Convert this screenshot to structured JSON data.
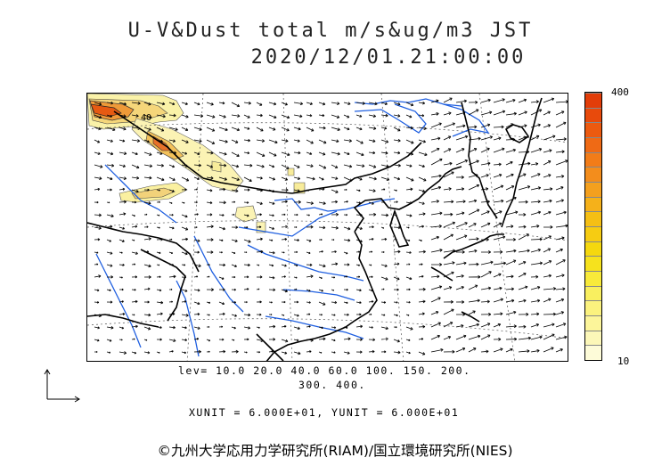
{
  "title": {
    "line1": "U-V&Dust total m/s&ug/m3 JST",
    "line2": "2020/12/01.21:00:00"
  },
  "map": {
    "coastline_color": "#000000",
    "river_color": "#1f5fe0",
    "grid_color": "#555555",
    "contour_label": "40"
  },
  "colorbar": {
    "max_label": "400",
    "min_label": "10",
    "colors": [
      "#fdfbd8",
      "#fcf7b8",
      "#fcf59a",
      "#fbf27e",
      "#f9ef5f",
      "#f8ea3a",
      "#f6e21d",
      "#f5d80e",
      "#f6cc12",
      "#f5bf14",
      "#f5b11a",
      "#f4a01e",
      "#f38d1c",
      "#f27c18",
      "#ef6a15",
      "#ec5a10",
      "#e84a0c",
      "#e23d09"
    ]
  },
  "levels": {
    "line1": "lev= 10.0 20.0 40.0 60.0 100. 150. 200.",
    "line2": "300. 400."
  },
  "units": "XUNIT = 6.000E+01, YUNIT = 6.000E+01",
  "credit": "©九州大学応用力学研究所(RIAM)/国立環境研究所(NIES)"
}
